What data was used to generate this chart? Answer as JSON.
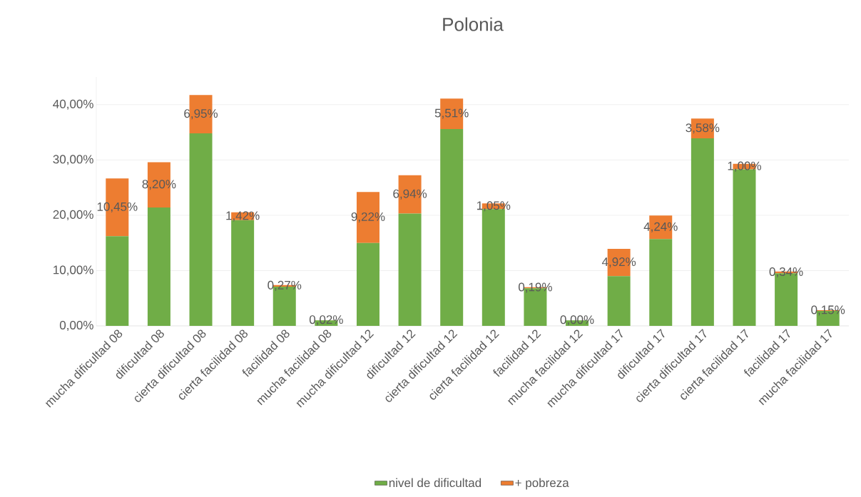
{
  "chart_data": {
    "type": "bar",
    "title": "Polonia",
    "stacked": true,
    "categories": [
      "mucha dificultad 08",
      "dificultad 08",
      "cierta dificultad 08",
      "cierta facilidad 08",
      "facilidad 08",
      "mucha facilidad 08",
      "mucha dificultad 12",
      "dificultad 12",
      "cierta dificultad 12",
      "cierta facilidad 12",
      "facilidad 12",
      "mucha facilidad 12",
      "mucha dificultad 17",
      "dificultad 17",
      "cierta dificultad 17",
      "cierta facilidad 17",
      "facilidad 17",
      "mucha facilidad 17"
    ],
    "series": [
      {
        "name": "nivel de dificultad",
        "color": "#70ad47",
        "values": [
          16.2,
          21.4,
          34.8,
          19.1,
          7.1,
          1.0,
          15.0,
          20.3,
          35.6,
          21.1,
          6.8,
          1.0,
          9.0,
          15.7,
          33.9,
          28.3,
          9.5,
          2.7
        ]
      },
      {
        "name": "+ pobreza",
        "color": "#ed7d31",
        "values": [
          10.45,
          8.2,
          6.95,
          1.42,
          0.27,
          0.02,
          9.22,
          6.94,
          5.51,
          1.05,
          0.19,
          0.0,
          4.92,
          4.24,
          3.58,
          1.0,
          0.34,
          0.15
        ],
        "value_labels": [
          "10,45%",
          "8,20%",
          "6,95%",
          "1,42%",
          "0,27%",
          "0,02%",
          "9,22%",
          "6,94%",
          "5,51%",
          "1,05%",
          "0,19%",
          "0,00%",
          "4,92%",
          "4,24%",
          "3,58%",
          "1,00%",
          "0,34%",
          "0,15%"
        ]
      }
    ],
    "ylim": [
      0,
      45
    ],
    "yticks": [
      {
        "value": 0,
        "label": "0,00%"
      },
      {
        "value": 10,
        "label": "10,00%"
      },
      {
        "value": 20,
        "label": "20,00%"
      },
      {
        "value": 30,
        "label": "30,00%"
      },
      {
        "value": 40,
        "label": "40,00%"
      }
    ],
    "grid": "y",
    "legend": "bottom"
  }
}
